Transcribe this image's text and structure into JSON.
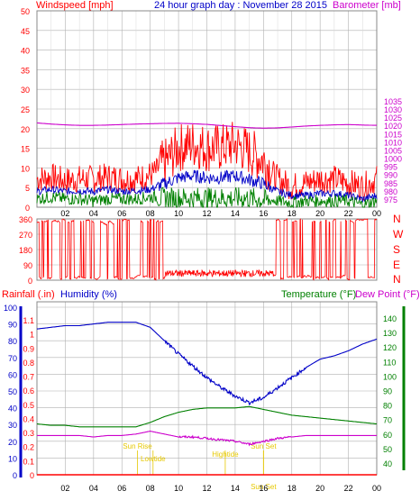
{
  "chart_data": [
    {
      "type": "line",
      "panel": "wind-baro",
      "title": "24 hour graph day : November 28 2015",
      "ylabel_left": "Windspeed [mph]",
      "ylabel_right": "Barometer [mb]",
      "ylim_left": [
        0,
        50
      ],
      "yticks_left": [
        "0",
        "5",
        "10",
        "15",
        "20",
        "25",
        "30",
        "35",
        "40",
        "45",
        "50"
      ],
      "ylim_right": [
        970,
        1090
      ],
      "yticks_right": [
        "975",
        "980",
        "985",
        "990",
        "995",
        "1000",
        "1005",
        "1010",
        "1015",
        "1020",
        "1025",
        "1030",
        "1035"
      ],
      "x_hours": [
        0,
        1,
        2,
        3,
        4,
        5,
        6,
        7,
        8,
        9,
        10,
        11,
        12,
        13,
        14,
        15,
        16,
        17,
        18,
        19,
        20,
        21,
        22,
        23,
        24
      ],
      "xtick_labels": [
        "02",
        "04",
        "06",
        "08",
        "10",
        "12",
        "14",
        "16",
        "18",
        "20",
        "22",
        "00"
      ],
      "series": [
        {
          "role": "gust",
          "color": "#ff0000",
          "values": [
            6,
            6.5,
            5.5,
            6,
            6,
            6.5,
            6,
            6,
            7,
            9,
            13,
            14,
            13,
            13,
            14,
            12,
            10,
            6,
            4,
            5,
            6,
            6,
            5,
            4,
            6
          ]
        },
        {
          "role": "average",
          "color": "#0000c8",
          "values": [
            4,
            4.5,
            4,
            4.2,
            4,
            4.5,
            4,
            4.2,
            4.5,
            6,
            7.5,
            8,
            7.5,
            7.5,
            8,
            7,
            6,
            4,
            3,
            3,
            3.5,
            3.5,
            3,
            2,
            3
          ]
        },
        {
          "role": "lull",
          "color": "#008000",
          "values": [
            2.5,
            3,
            2.5,
            2.5,
            2,
            2.5,
            2.5,
            2.5,
            3,
            3,
            3,
            3,
            3,
            3,
            3,
            3,
            2.5,
            2,
            1.5,
            2,
            2,
            2,
            2,
            1,
            2
          ]
        },
        {
          "role": "barometer",
          "color": "#cc00cc",
          "values": [
            1021.5,
            1020.8,
            1020.3,
            1020.0,
            1020.0,
            1020.2,
            1020.5,
            1020.8,
            1021.0,
            1021.2,
            1021.3,
            1021.0,
            1020.6,
            1019.9,
            1019.2,
            1018.6,
            1018.3,
            1018.5,
            1019.0,
            1019.6,
            1020.0,
            1020.3,
            1020.5,
            1020.2,
            1020.0
          ]
        }
      ]
    },
    {
      "type": "scatter",
      "panel": "wind-direction",
      "ylim": [
        0,
        360
      ],
      "yticks": [
        "0",
        "90",
        "180",
        "270",
        "360"
      ],
      "compass_labels": [
        "N",
        "W",
        "S",
        "E",
        "N"
      ],
      "series": [
        {
          "role": "direction",
          "color": "#ff0000",
          "note_values": "predominantly near 0/360 with large swings early and late; near 20-60 between 09 and 17"
        }
      ]
    },
    {
      "type": "line",
      "panel": "rain-humidity-temp",
      "labels": {
        "rainfall": "Rainfall (.in)",
        "humidity": "Humidity (%)",
        "temperature": "Temperature (°F)",
        "dewpoint": "Dew Point (°F)"
      },
      "ylim_humidity": [
        0,
        100
      ],
      "yticks_humidity": [
        "0",
        "10",
        "20",
        "30",
        "40",
        "50",
        "60",
        "70",
        "80",
        "90",
        "100"
      ],
      "ylim_rain": [
        0,
        1.2
      ],
      "yticks_rain": [
        "0",
        "0.1",
        "0.2",
        "0.3",
        "0.4",
        "0.5",
        "0.6",
        "0.7",
        "0.8",
        "0.9",
        "1",
        "1.1"
      ],
      "ylim_temp": [
        30,
        145
      ],
      "yticks_temp": [
        "40",
        "50",
        "60",
        "70",
        "80",
        "90",
        "100",
        "110",
        "120",
        "130",
        "140"
      ],
      "x_hours": [
        0,
        1,
        2,
        3,
        4,
        5,
        6,
        7,
        8,
        9,
        10,
        11,
        12,
        13,
        14,
        15,
        16,
        17,
        18,
        19,
        20,
        21,
        22,
        23,
        24
      ],
      "series": [
        {
          "role": "humidity",
          "color": "#0000c8",
          "values": [
            87,
            88,
            89,
            89,
            90,
            91,
            91,
            91,
            88,
            80,
            72,
            65,
            58,
            52,
            47,
            43,
            46,
            52,
            58,
            64,
            69,
            71,
            74,
            78,
            81
          ]
        },
        {
          "role": "temperature",
          "color": "#008000",
          "values": [
            67,
            66,
            66,
            65,
            65,
            65,
            65,
            65,
            68,
            72,
            75,
            77,
            78,
            78,
            78,
            79,
            77,
            75,
            73,
            72,
            71,
            70,
            69,
            68,
            67
          ]
        },
        {
          "role": "dewpoint",
          "color": "#cc00cc",
          "values": [
            59,
            59,
            59,
            59,
            58,
            59,
            59,
            60,
            62,
            60,
            58,
            58,
            57,
            56,
            55,
            53,
            55,
            57,
            58,
            59,
            59,
            59,
            59,
            59,
            59
          ]
        },
        {
          "role": "rainfall",
          "color": "#ff0000",
          "values": [
            0,
            0,
            0,
            0,
            0,
            0,
            0,
            0,
            0,
            0,
            0,
            0,
            0,
            0,
            0,
            0,
            0,
            0,
            0,
            0,
            0,
            0,
            0,
            0,
            0
          ]
        }
      ],
      "annotations": [
        {
          "text": "Sun Rise",
          "hour": 7.1
        },
        {
          "text": "Lowtide",
          "hour": 8.2
        },
        {
          "text": "Hightide",
          "hour": 13.3
        },
        {
          "text": "Sun Set",
          "hour": 16.0
        },
        {
          "text": "Sun Set",
          "hour": 16.0
        }
      ],
      "xtick_labels": [
        "02",
        "04",
        "06",
        "08",
        "10",
        "12",
        "14",
        "16",
        "18",
        "20",
        "22",
        "00"
      ]
    }
  ],
  "colors": {
    "wind": "#ff0000",
    "baro": "#cc00cc",
    "humidity": "#0000c8",
    "temp": "#008000",
    "annot": "#e6c800",
    "grid": "#b0b0b0"
  }
}
